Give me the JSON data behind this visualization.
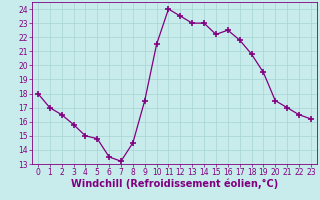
{
  "x": [
    0,
    1,
    2,
    3,
    4,
    5,
    6,
    7,
    8,
    9,
    10,
    11,
    12,
    13,
    14,
    15,
    16,
    17,
    18,
    19,
    20,
    21,
    22,
    23
  ],
  "y": [
    18,
    17,
    16.5,
    15.8,
    15,
    14.8,
    13.5,
    13.2,
    14.5,
    17.5,
    21.5,
    24,
    23.5,
    23,
    23,
    22.2,
    22.5,
    21.8,
    20.8,
    19.5,
    17.5,
    17,
    16.5,
    16.2
  ],
  "line_color": "#800080",
  "marker": "+",
  "marker_size": 4,
  "bg_color": "#c8ecec",
  "grid_color": "#a8d4d4",
  "xlabel": "Windchill (Refroidissement éolien,°C)",
  "ylim": [
    13,
    24.5
  ],
  "xlim": [
    -0.5,
    23.5
  ],
  "yticks": [
    13,
    14,
    15,
    16,
    17,
    18,
    19,
    20,
    21,
    22,
    23,
    24
  ],
  "xticks": [
    0,
    1,
    2,
    3,
    4,
    5,
    6,
    7,
    8,
    9,
    10,
    11,
    12,
    13,
    14,
    15,
    16,
    17,
    18,
    19,
    20,
    21,
    22,
    23
  ],
  "tick_label_fontsize": 5.5,
  "xlabel_fontsize": 7.0
}
